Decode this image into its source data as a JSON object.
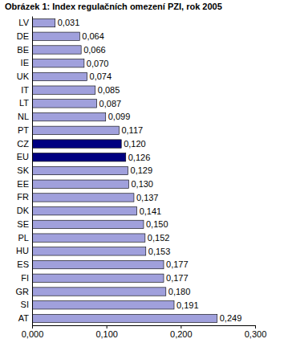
{
  "chart_data": {
    "type": "bar",
    "orientation": "horizontal",
    "title": "Obrázek 1: Index regulačních omezení PZI, rok 2005",
    "categories": [
      "LV",
      "DE",
      "BE",
      "IE",
      "UK",
      "IT",
      "LT",
      "NL",
      "PT",
      "CZ",
      "EU",
      "SK",
      "EE",
      "FR",
      "DK",
      "SE",
      "PL",
      "HU",
      "ES",
      "FI",
      "GR",
      "SI",
      "AT"
    ],
    "values": [
      0.031,
      0.064,
      0.066,
      0.07,
      0.074,
      0.085,
      0.087,
      0.099,
      0.117,
      0.12,
      0.126,
      0.129,
      0.13,
      0.137,
      0.141,
      0.15,
      0.152,
      0.153,
      0.177,
      0.177,
      0.18,
      0.191,
      0.249
    ],
    "value_labels": [
      "0,031",
      "0,064",
      "0,066",
      "0,070",
      "0,074",
      "0,085",
      "0,087",
      "0,099",
      "0,117",
      "0,120",
      "0,126",
      "0,129",
      "0,130",
      "0,137",
      "0,141",
      "0,150",
      "0,152",
      "0,153",
      "0,177",
      "0,177",
      "0,180",
      "0,191",
      "0,249"
    ],
    "colors": [
      "#a0a0dc",
      "#a0a0dc",
      "#a0a0dc",
      "#a0a0dc",
      "#a0a0dc",
      "#a0a0dc",
      "#a0a0dc",
      "#a0a0dc",
      "#a0a0dc",
      "#000080",
      "#000080",
      "#a0a0dc",
      "#a0a0dc",
      "#a0a0dc",
      "#a0a0dc",
      "#a0a0dc",
      "#a0a0dc",
      "#a0a0dc",
      "#a0a0dc",
      "#a0a0dc",
      "#a0a0dc",
      "#a0a0dc",
      "#a0a0dc"
    ],
    "data_labels": true,
    "xlim": [
      0,
      0.3
    ],
    "xticks": [
      {
        "value": 0,
        "label": "0,000"
      },
      {
        "value": 0.1,
        "label": "0,100"
      },
      {
        "value": 0.2,
        "label": "0,200"
      },
      {
        "value": 0.3,
        "label": "0,300"
      }
    ],
    "grid": false
  }
}
